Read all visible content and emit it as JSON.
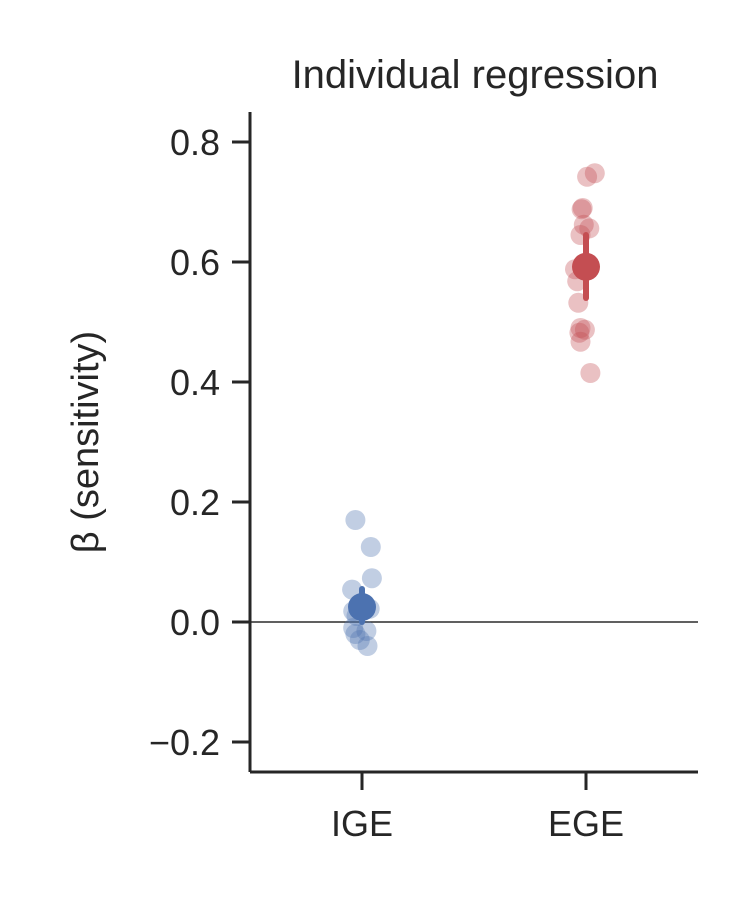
{
  "chart_data": {
    "type": "scatter",
    "title": "Individual regression",
    "xlabel": "",
    "ylabel": "β (sensitivity)",
    "categories": [
      "IGE",
      "EGE"
    ],
    "ylim": [
      -0.25,
      0.85
    ],
    "yticks": [
      -0.2,
      0.0,
      0.2,
      0.4,
      0.6,
      0.8
    ],
    "ytick_labels": [
      "−0.2",
      "0.0",
      "0.2",
      "0.4",
      "0.6",
      "0.8"
    ],
    "reference_line_y": 0.0,
    "grid": false,
    "series": [
      {
        "category": "IGE",
        "color": "#4c72b0",
        "points": [
          {
            "x": -0.06,
            "y": 0.17
          },
          {
            "x": 0.08,
            "y": 0.125
          },
          {
            "x": 0.09,
            "y": 0.073
          },
          {
            "x": -0.09,
            "y": 0.054
          },
          {
            "x": -0.08,
            "y": 0.018
          },
          {
            "x": 0.07,
            "y": 0.022
          },
          {
            "x": -0.05,
            "y": 0.01
          },
          {
            "x": -0.08,
            "y": -0.01
          },
          {
            "x": 0.04,
            "y": -0.015
          },
          {
            "x": -0.06,
            "y": -0.02
          },
          {
            "x": -0.02,
            "y": -0.03
          },
          {
            "x": 0.05,
            "y": -0.04
          }
        ],
        "mean": 0.025,
        "error": [
          0.0,
          0.055
        ]
      },
      {
        "category": "EGE",
        "color": "#c44e52",
        "points": [
          {
            "x": 0.08,
            "y": 0.748
          },
          {
            "x": 0.01,
            "y": 0.742
          },
          {
            "x": -0.03,
            "y": 0.69
          },
          {
            "x": -0.04,
            "y": 0.688
          },
          {
            "x": -0.02,
            "y": 0.662
          },
          {
            "x": 0.03,
            "y": 0.656
          },
          {
            "x": -0.05,
            "y": 0.645
          },
          {
            "x": -0.1,
            "y": 0.588
          },
          {
            "x": -0.08,
            "y": 0.568
          },
          {
            "x": -0.07,
            "y": 0.532
          },
          {
            "x": -0.05,
            "y": 0.49
          },
          {
            "x": -0.01,
            "y": 0.487
          },
          {
            "x": -0.06,
            "y": 0.482
          },
          {
            "x": -0.05,
            "y": 0.467
          },
          {
            "x": 0.04,
            "y": 0.415
          }
        ],
        "mean": 0.592,
        "error": [
          0.54,
          0.645
        ]
      }
    ]
  }
}
